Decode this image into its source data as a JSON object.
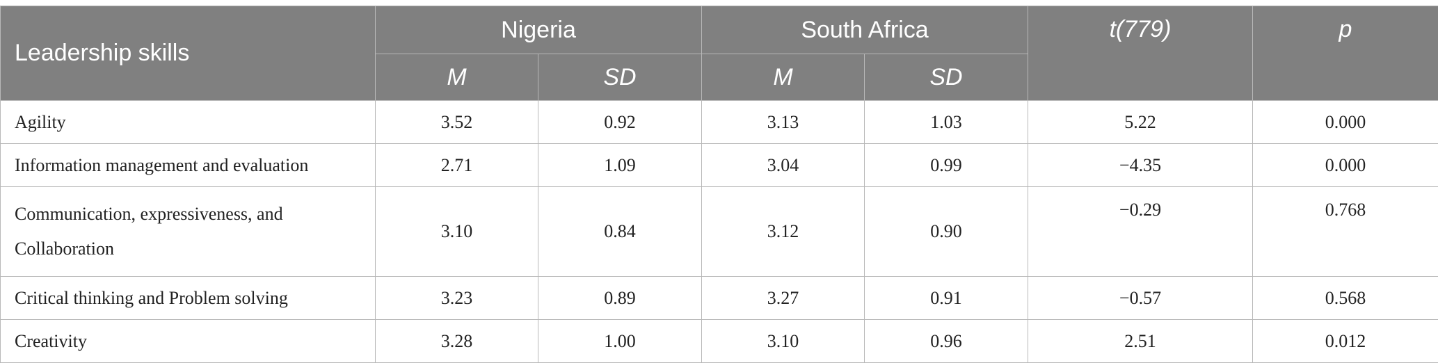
{
  "table": {
    "headers": {
      "row_label": "Leadership skills",
      "group1": "Nigeria",
      "group2": "South Africa",
      "stat_t": "t(779)",
      "stat_p": "p",
      "sub_m": "M",
      "sub_sd": "SD"
    },
    "rows": [
      {
        "label": "Agility",
        "ng_m": "3.52",
        "ng_sd": "0.92",
        "sa_m": "3.13",
        "sa_sd": "1.03",
        "t": "5.22",
        "p": "0.000"
      },
      {
        "label": "Information management and evaluation",
        "ng_m": "2.71",
        "ng_sd": "1.09",
        "sa_m": "3.04",
        "sa_sd": "0.99",
        "t": "−4.35",
        "p": "0.000"
      },
      {
        "label": "Communication, expressiveness, and Collaboration",
        "ng_m": "3.10",
        "ng_sd": "0.84",
        "sa_m": "3.12",
        "sa_sd": "0.90",
        "t": "−0.29",
        "p": "0.768"
      },
      {
        "label": "Critical thinking and Problem solving",
        "ng_m": "3.23",
        "ng_sd": "0.89",
        "sa_m": "3.27",
        "sa_sd": "0.91",
        "t": "−0.57",
        "p": "0.568"
      },
      {
        "label": "Creativity",
        "ng_m": "3.28",
        "ng_sd": "1.00",
        "sa_m": "3.10",
        "sa_sd": "0.96",
        "t": "2.51",
        "p": "0.012"
      }
    ]
  },
  "colors": {
    "header_bg": "#808080",
    "header_text": "#ffffff",
    "border": "#b8b8b8"
  }
}
